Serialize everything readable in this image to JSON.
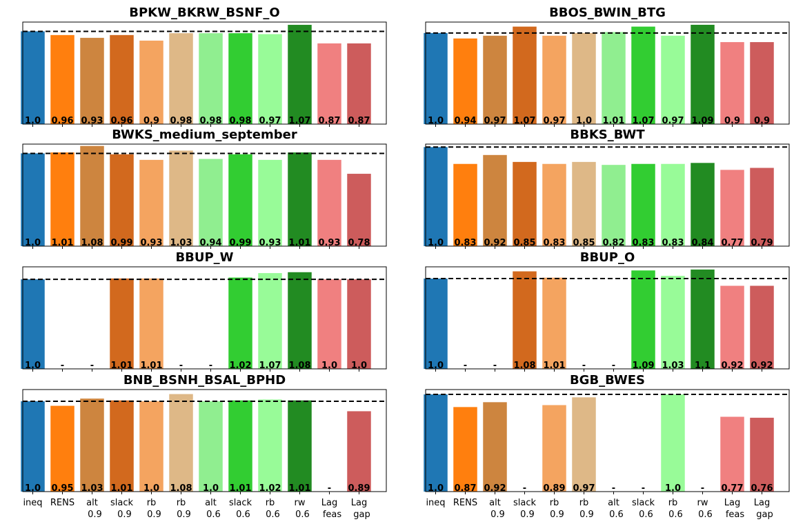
{
  "colors": [
    "#1f77b4",
    "#ff7f0e",
    "#cd853f",
    "#d2691e",
    "#f4a460",
    "#deb887",
    "#90ee90",
    "#32cd32",
    "#98fb98",
    "#228b22",
    "#f08080",
    "#cd5c5c"
  ],
  "xtick_labels": [
    [
      "ineq"
    ],
    [
      "RENS"
    ],
    [
      "alt",
      "0.9"
    ],
    [
      "slack",
      "0.9"
    ],
    [
      "rb",
      "0.9"
    ],
    [
      "rb",
      "0.9"
    ],
    [
      "alt",
      "0.6"
    ],
    [
      "slack",
      "0.6"
    ],
    [
      "rb",
      "0.6"
    ],
    [
      "rw",
      "0.6"
    ],
    [
      "Lag",
      "feas"
    ],
    [
      "Lag",
      "gap"
    ]
  ],
  "chart_data": [
    {
      "type": "bar",
      "title": "BPKW_BKRW_BSNF_O",
      "reference_line": 1.0,
      "ylim": [
        0,
        1.1
      ],
      "values": [
        1.0,
        0.96,
        0.93,
        0.96,
        0.9,
        0.98,
        0.98,
        0.98,
        0.97,
        1.07,
        0.87,
        0.87
      ],
      "labels": [
        "1.0",
        "0.96",
        "0.93",
        "0.96",
        "0.9",
        "0.98",
        "0.98",
        "0.98",
        "0.97",
        "1.07",
        "0.87",
        "0.87"
      ]
    },
    {
      "type": "bar",
      "title": "BBOS_BWIN_BTG",
      "reference_line": 1.0,
      "ylim": [
        0,
        1.12
      ],
      "values": [
        1.0,
        0.94,
        0.97,
        1.07,
        0.97,
        1.0,
        1.01,
        1.07,
        0.97,
        1.09,
        0.9,
        0.9
      ],
      "labels": [
        "1.0",
        "0.94",
        "0.97",
        "1.07",
        "0.97",
        "1.0",
        "1.01",
        "1.07",
        "0.97",
        "1.09",
        "0.9",
        "0.9"
      ]
    },
    {
      "type": "bar",
      "title": "BWKS_medium_september",
      "reference_line": 1.0,
      "ylim": [
        0,
        1.1
      ],
      "values": [
        1.0,
        1.01,
        1.08,
        0.99,
        0.93,
        1.03,
        0.94,
        0.99,
        0.93,
        1.01,
        0.93,
        0.78
      ],
      "labels": [
        "1.0",
        "1.01",
        "1.08",
        "0.99",
        "0.93",
        "1.03",
        "0.94",
        "0.99",
        "0.93",
        "1.01",
        "0.93",
        "0.78"
      ]
    },
    {
      "type": "bar",
      "title": "BBKS_BWT",
      "reference_line": 1.0,
      "ylim": [
        0,
        1.03
      ],
      "values": [
        1.0,
        0.83,
        0.92,
        0.85,
        0.83,
        0.85,
        0.82,
        0.83,
        0.83,
        0.84,
        0.77,
        0.79
      ],
      "labels": [
        "1.0",
        "0.83",
        "0.92",
        "0.85",
        "0.83",
        "0.85",
        "0.82",
        "0.83",
        "0.83",
        "0.84",
        "0.77",
        "0.79"
      ]
    },
    {
      "type": "bar",
      "title": "BBUP_W",
      "reference_line": 1.0,
      "ylim": [
        0,
        1.14
      ],
      "values": [
        1.0,
        null,
        null,
        1.01,
        1.01,
        null,
        null,
        1.02,
        1.07,
        1.08,
        1.0,
        1.0
      ],
      "labels": [
        "1.0",
        "-",
        "-",
        "1.01",
        "1.01",
        "-",
        "-",
        "1.02",
        "1.07",
        "1.08",
        "1.0",
        "1.0"
      ]
    },
    {
      "type": "bar",
      "title": "BBUP_O",
      "reference_line": 1.0,
      "ylim": [
        0,
        1.13
      ],
      "values": [
        1.0,
        null,
        null,
        1.08,
        1.01,
        null,
        null,
        1.09,
        1.03,
        1.1,
        0.92,
        0.92
      ],
      "labels": [
        "1.0",
        "-",
        "-",
        "1.08",
        "1.01",
        "-",
        "-",
        "1.09",
        "1.03",
        "1.1",
        "0.92",
        "0.92"
      ]
    },
    {
      "type": "bar",
      "title": "BNB_BSNH_BSAL_BPHD",
      "reference_line": 1.0,
      "ylim": [
        0,
        1.13
      ],
      "values": [
        1.0,
        0.95,
        1.03,
        1.01,
        1.0,
        1.08,
        1.0,
        1.01,
        1.02,
        1.01,
        null,
        0.89
      ],
      "labels": [
        "1.0",
        "0.95",
        "1.03",
        "1.01",
        "1.0",
        "1.08",
        "1.0",
        "1.01",
        "1.02",
        "1.01",
        "-",
        "0.89"
      ]
    },
    {
      "type": "bar",
      "title": "BGB_BWES",
      "reference_line": 1.0,
      "ylim": [
        0,
        1.05
      ],
      "values": [
        1.0,
        0.87,
        0.92,
        null,
        0.89,
        0.97,
        null,
        null,
        1.0,
        null,
        0.77,
        0.76
      ],
      "labels": [
        "1.0",
        "0.87",
        "0.92",
        "-",
        "0.89",
        "0.97",
        "-",
        "-",
        "1.0",
        "-",
        "0.77",
        "0.76"
      ]
    }
  ]
}
